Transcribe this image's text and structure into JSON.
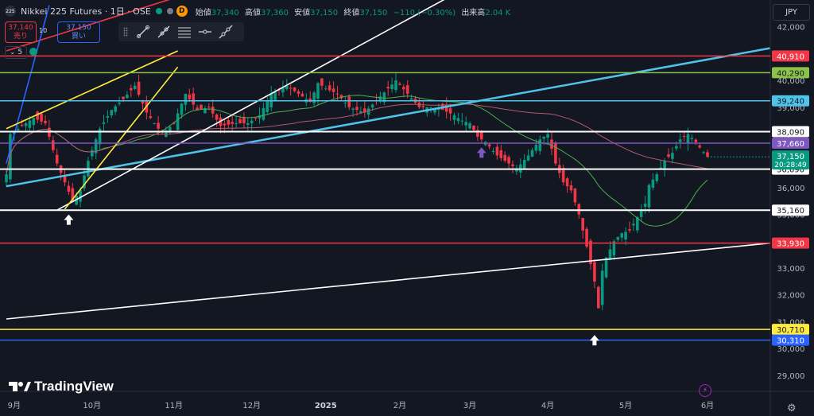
{
  "header": {
    "symbol_badge": "225",
    "title": "Nikkei 225 Futures · 1日 · OSE",
    "d_badge": "D",
    "ohlc": [
      {
        "key": "始値",
        "value": "37,340"
      },
      {
        "key": "高値",
        "value": "37,360"
      },
      {
        "key": "安値",
        "value": "37,150"
      },
      {
        "key": "終値",
        "value": "37,150"
      }
    ],
    "change": "−110 (−0.30%)",
    "volume_label": "出来高",
    "volume_value": "2.04 K"
  },
  "trade": {
    "sell_price": "37,140",
    "sell_label": "売り",
    "buy_price": "37,150",
    "buy_label": "買い",
    "spread": "10"
  },
  "version_selector": "⌄ 5",
  "currency": "JPY",
  "brand": "TradingView",
  "colors": {
    "background": "#131722",
    "up": "#089981",
    "down": "#f23645",
    "ma_short": "#4caf50",
    "ma_long": "#b2596e"
  },
  "chart_data": {
    "type": "candlestick",
    "ylim": [
      28400,
      43000
    ],
    "price_axis_ticks": [
      29000,
      30000,
      31000,
      32000,
      33000,
      34000,
      35000,
      36000,
      37000,
      38000,
      39000,
      40000,
      41000,
      42000
    ],
    "x_months": [
      {
        "label": "9月",
        "index": 2
      },
      {
        "label": "10月",
        "index": 22
      },
      {
        "label": "11月",
        "index": 43
      },
      {
        "label": "12月",
        "index": 63
      },
      {
        "label": "2025",
        "index": 82
      },
      {
        "label": "2月",
        "index": 101
      },
      {
        "label": "3月",
        "index": 119
      },
      {
        "label": "4月",
        "index": 139
      },
      {
        "label": "5月",
        "index": 159
      },
      {
        "label": "6月",
        "index": 180
      }
    ],
    "anchors": [
      [
        0,
        36500
      ],
      [
        1,
        38000
      ],
      [
        3,
        38200
      ],
      [
        7,
        38600
      ],
      [
        10,
        38400
      ],
      [
        13,
        36900
      ],
      [
        15,
        36200
      ],
      [
        17,
        35500
      ],
      [
        19,
        35900
      ],
      [
        21,
        37000
      ],
      [
        24,
        38200
      ],
      [
        27,
        38900
      ],
      [
        30,
        39300
      ],
      [
        33,
        39800
      ],
      [
        36,
        38800
      ],
      [
        40,
        38000
      ],
      [
        43,
        38400
      ],
      [
        46,
        39500
      ],
      [
        49,
        38900
      ],
      [
        52,
        39000
      ],
      [
        55,
        38300
      ],
      [
        59,
        38400
      ],
      [
        62,
        38400
      ],
      [
        65,
        38700
      ],
      [
        68,
        39500
      ],
      [
        72,
        39800
      ],
      [
        75,
        39500
      ],
      [
        78,
        39200
      ],
      [
        80,
        39900
      ],
      [
        82,
        39700
      ],
      [
        85,
        39500
      ],
      [
        88,
        39000
      ],
      [
        92,
        38800
      ],
      [
        96,
        39400
      ],
      [
        100,
        40000
      ],
      [
        103,
        39500
      ],
      [
        106,
        39000
      ],
      [
        109,
        39000
      ],
      [
        112,
        38900
      ],
      [
        115,
        38700
      ],
      [
        117,
        38500
      ],
      [
        119,
        38400
      ],
      [
        121,
        37900
      ],
      [
        123,
        37700
      ],
      [
        126,
        37200
      ],
      [
        129,
        36900
      ],
      [
        131,
        36700
      ],
      [
        134,
        37200
      ],
      [
        137,
        37800
      ],
      [
        139,
        38000
      ],
      [
        141,
        36900
      ],
      [
        143,
        36200
      ],
      [
        145,
        35900
      ],
      [
        147,
        35000
      ],
      [
        149,
        33800
      ],
      [
        151,
        32500
      ],
      [
        152,
        31500
      ],
      [
        153,
        32900
      ],
      [
        154,
        33400
      ],
      [
        156,
        34000
      ],
      [
        158,
        34300
      ],
      [
        160,
        34400
      ],
      [
        162,
        34900
      ],
      [
        164,
        35400
      ],
      [
        165,
        36100
      ],
      [
        167,
        36500
      ],
      [
        169,
        37000
      ],
      [
        171,
        37300
      ],
      [
        173,
        37800
      ],
      [
        175,
        38000
      ],
      [
        177,
        37700
      ],
      [
        178,
        37500
      ],
      [
        180,
        37150
      ]
    ],
    "candle_count": 181,
    "candle_spacing": 4.9,
    "first_candle_x": 8,
    "moving_averages": [
      {
        "name": "",
        "period": 25,
        "color": "#4caf50"
      },
      {
        "name": "",
        "period": 75,
        "color": "#b2596e"
      }
    ],
    "horizontal_levels": [
      {
        "price": 40910,
        "label": "40,910",
        "color": "#f23645"
      },
      {
        "price": 40290,
        "label": "40,290",
        "color": "#8bc34a"
      },
      {
        "price": 39240,
        "label": "39,240",
        "color": "#4fc3e8"
      },
      {
        "price": 38090,
        "label": "38,090",
        "color": "#ffffff"
      },
      {
        "price": 37660,
        "label": "37,660",
        "color": "#7e57c2"
      },
      {
        "price": 36690,
        "label": "36,690",
        "color": "#ffffff"
      },
      {
        "price": 35160,
        "label": "35,160",
        "color": "#ffffff"
      },
      {
        "price": 33930,
        "label": "33,930",
        "color": "#f23645"
      },
      {
        "price": 30710,
        "label": "30,710",
        "color": "#ffeb3b"
      },
      {
        "price": 30310,
        "label": "30,310",
        "color": "#2962ff"
      }
    ],
    "current_price": {
      "label": "37,150",
      "countdown": "20:28:49",
      "color": "#089981"
    },
    "trendlines": [
      {
        "x1": 0,
        "p1": 36050,
        "x2": 196,
        "p2": 41200,
        "color": "#4fc3e8"
      },
      {
        "x1": 0,
        "p1": 31100,
        "x2": 196,
        "p2": 33930,
        "color": "#ffffff"
      },
      {
        "x1": 13,
        "p1": 35160,
        "x2": 116,
        "p2": 43300,
        "color": "#ffffff"
      },
      {
        "x1": 0,
        "p1": 41100,
        "x2": 48,
        "p2": 43300,
        "color": "#f23645"
      },
      {
        "x1": 0,
        "p1": 36900,
        "x2": 11,
        "p2": 42800,
        "color": "#2962ff"
      },
      {
        "x1": 0,
        "p1": 38200,
        "x2": 44,
        "p2": 41100,
        "color": "#ffeb3b"
      },
      {
        "x1": 15,
        "p1": 35200,
        "x2": 44,
        "p2": 40500,
        "color": "#ffeb3b"
      }
    ],
    "arrows": [
      {
        "index": 16,
        "price": 35000,
        "color": "#ffffff"
      },
      {
        "index": 122,
        "price": 37500,
        "color": "#7e57c2"
      },
      {
        "index": 151,
        "price": 30500,
        "color": "#ffffff"
      }
    ]
  }
}
